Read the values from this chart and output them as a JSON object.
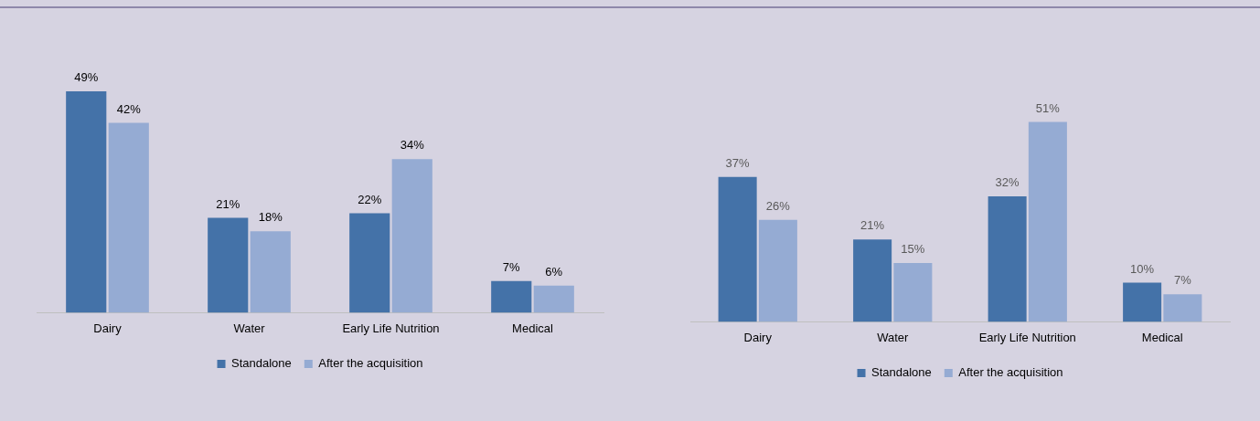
{
  "chart_data": [
    {
      "type": "bar",
      "categories": [
        "Dairy",
        "Water",
        "Early Life Nutrition",
        "Medical"
      ],
      "series": [
        {
          "name": "Standalone",
          "color": "#4472a8",
          "values": [
            49,
            21,
            22,
            7
          ],
          "value_labels": [
            "49%",
            "21%",
            "22%",
            "7%"
          ]
        },
        {
          "name": "After the acquisition",
          "color": "#95abd3",
          "values": [
            42,
            18,
            34,
            6
          ],
          "value_labels": [
            "42%",
            "18%",
            "34%",
            "6%"
          ]
        }
      ],
      "legend": "bottom",
      "grid": false
    },
    {
      "type": "bar",
      "categories": [
        "Dairy",
        "Water",
        "Early Life Nutrition",
        "Medical"
      ],
      "series": [
        {
          "name": "Standalone",
          "color": "#4472a8",
          "values": [
            37,
            21,
            32,
            10
          ],
          "value_labels": [
            "37%",
            "21%",
            "32%",
            "10%"
          ]
        },
        {
          "name": "After the acquisition",
          "color": "#95abd3",
          "values": [
            26,
            15,
            51,
            7
          ],
          "value_labels": [
            "26%",
            "15%",
            "51%",
            "7%"
          ]
        }
      ],
      "legend": "bottom",
      "grid": false
    }
  ]
}
